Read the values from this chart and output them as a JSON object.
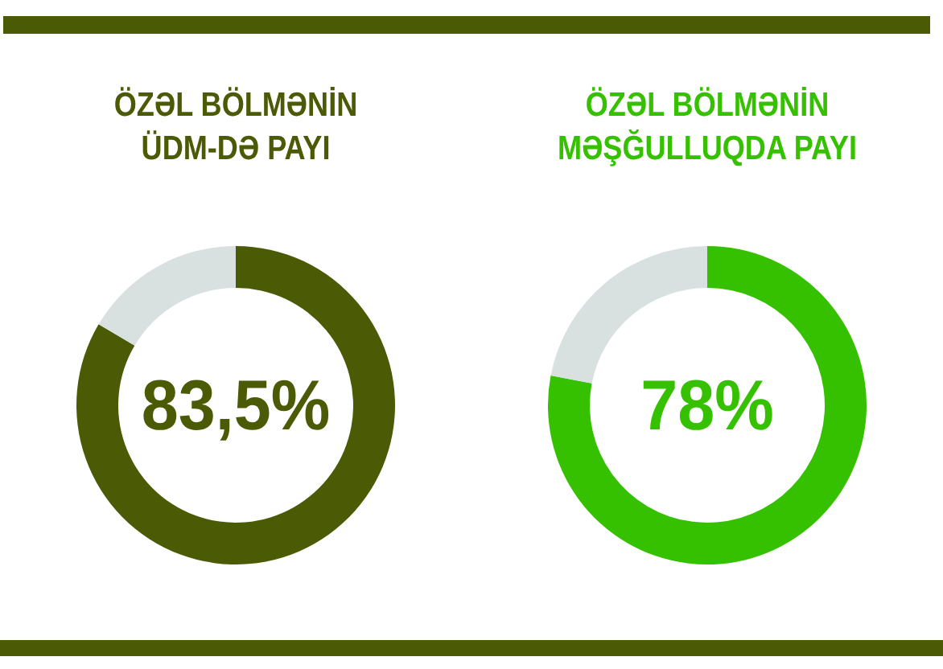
{
  "chart_data": [
    {
      "type": "donut",
      "title": "ÖZƏL BÖLMƏNİN\nÜDM-DƏ PAYI",
      "categories": [
        null,
        null
      ],
      "values": [
        83.5,
        16.5
      ],
      "colors": [
        "#4b5a05",
        "#d9e0e0"
      ],
      "value_labels": [
        "83,5%",
        null
      ]
    },
    {
      "type": "donut",
      "title": "ÖZƏL BÖLMƏNİN\nMƏŞĞULLUQDA PAYI",
      "categories": [
        null,
        null
      ],
      "values": [
        78,
        22
      ],
      "colors": [
        "#35c100",
        "#d9e0e0"
      ],
      "value_labels": [
        "78%",
        null
      ]
    }
  ]
}
